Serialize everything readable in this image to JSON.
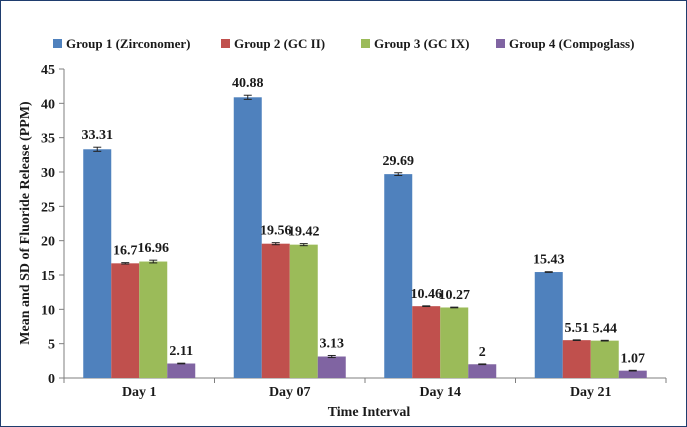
{
  "chart_data": {
    "type": "bar",
    "categories": [
      "Day 1",
      "Day 07",
      "Day 14",
      "Day 21"
    ],
    "series": [
      {
        "name": "Group 1 (Zirconomer)",
        "color": "#4f81bd",
        "values": [
          33.31,
          40.88,
          29.69,
          15.43
        ],
        "labels": [
          "33.31",
          "40.88",
          "29.69",
          "15.43"
        ],
        "sd": [
          0.3,
          0.3,
          0.2,
          0.05
        ]
      },
      {
        "name": "Group 2 (GC II)",
        "color": "#c0504d",
        "values": [
          16.7,
          19.56,
          10.46,
          5.51
        ],
        "labels": [
          "16.7",
          "19.56",
          "10.46",
          "5.51"
        ],
        "sd": [
          0.1,
          0.15,
          0.05,
          0.05
        ]
      },
      {
        "name": "Group 3 (GC IX)",
        "color": "#9bbb59",
        "values": [
          16.96,
          19.42,
          10.27,
          5.44
        ],
        "labels": [
          "16.96",
          "19.42",
          "10.27",
          "5.44"
        ],
        "sd": [
          0.2,
          0.15,
          0.05,
          0.05
        ]
      },
      {
        "name": "Group 4 (Compoglass)",
        "color": "#8064a2",
        "values": [
          2.11,
          3.13,
          2,
          1.07
        ],
        "labels": [
          "2.11",
          "3.13",
          "2",
          "1.07"
        ],
        "sd": [
          0.05,
          0.15,
          0.05,
          0.05
        ]
      }
    ],
    "xlabel": "Time Interval",
    "ylabel": "Mean and SD of Fluoride Release (PPM)",
    "ylim": [
      0,
      45
    ],
    "yticks": [
      0,
      5,
      10,
      15,
      20,
      25,
      30,
      35,
      40,
      45
    ],
    "grid": false,
    "legend_position": "top"
  }
}
